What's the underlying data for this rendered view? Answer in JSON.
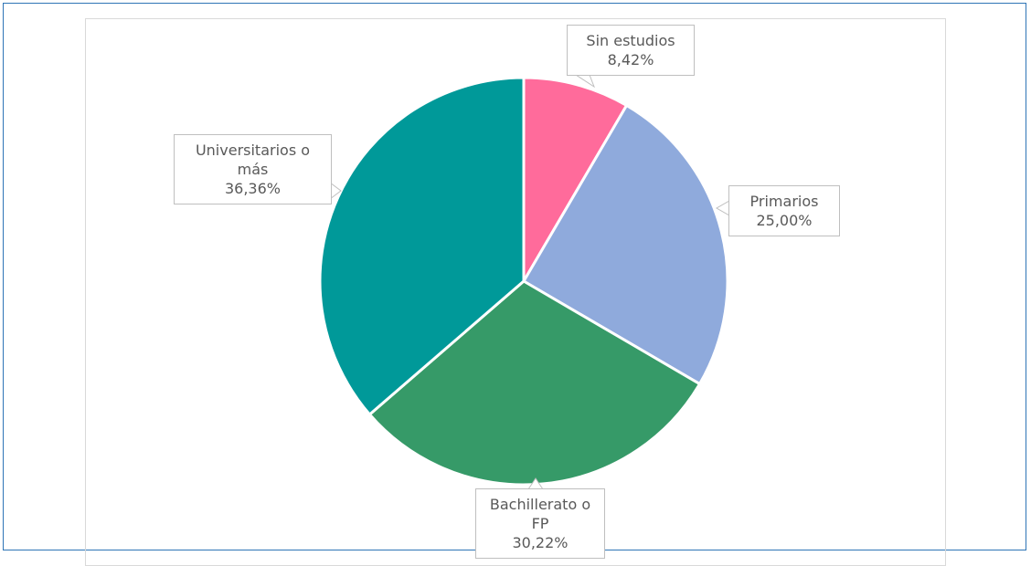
{
  "chart_data": {
    "type": "pie",
    "categories": [
      "Sin estudios",
      "Primarios",
      "Bachillerato o FP",
      "Universitarios o más"
    ],
    "values": [
      8.42,
      25.0,
      30.22,
      36.36
    ],
    "value_labels": [
      "8,42%",
      "25,00%",
      "30,22%",
      "36,36%"
    ],
    "colors": [
      "#ff6b9b",
      "#8faadc",
      "#369a68",
      "#009999"
    ]
  }
}
